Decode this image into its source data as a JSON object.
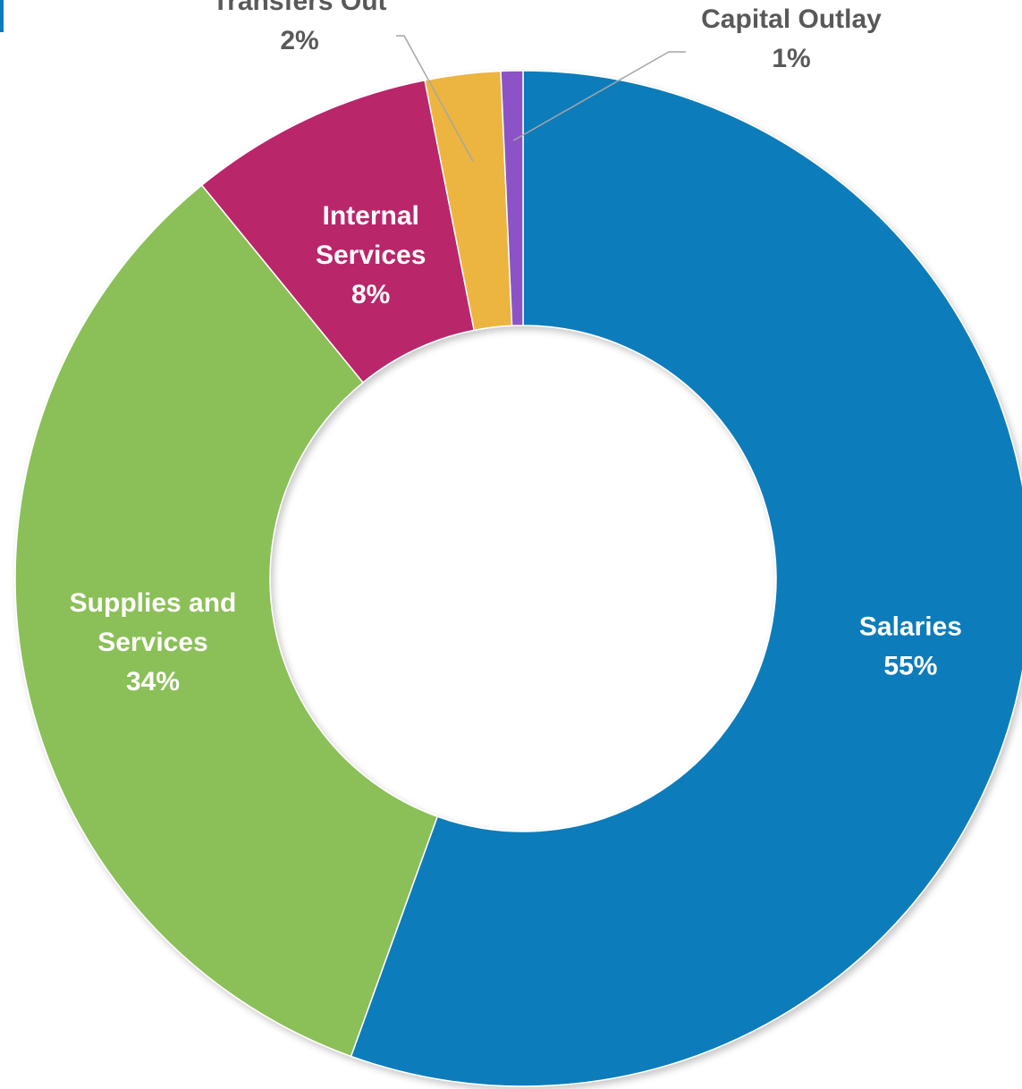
{
  "chart_data": {
    "type": "pie",
    "donut": true,
    "slices": [
      {
        "label_lines": [
          "Salaries"
        ],
        "pct_label": "55%",
        "value": 55.5,
        "color": "#0e7cbb",
        "label_pos": "inside"
      },
      {
        "label_lines": [
          "Supplies and",
          "Services"
        ],
        "pct_label": "34%",
        "value": 33.6,
        "color": "#8bbf58",
        "label_pos": "inside"
      },
      {
        "label_lines": [
          "Internal",
          "Services"
        ],
        "pct_label": "8%",
        "value": 7.8,
        "color": "#b9266b",
        "label_pos": "inside"
      },
      {
        "label_lines": [
          "Transfers Out"
        ],
        "pct_label": "2%",
        "value": 2.4,
        "color": "#ecb53f",
        "label_pos": "outside"
      },
      {
        "label_lines": [
          "Capital Outlay"
        ],
        "pct_label": "1%",
        "value": 0.7,
        "color": "#8c52c7",
        "label_pos": "outside"
      }
    ],
    "legend": "none",
    "data_labels": "category name and percentage"
  }
}
